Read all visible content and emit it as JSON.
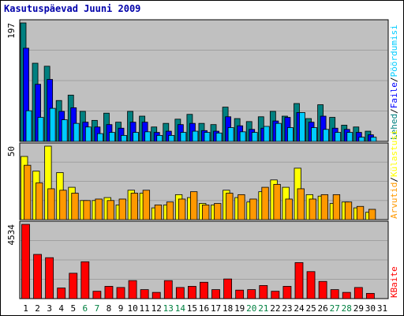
{
  "title": "Kasutuspäevad Juuni 2009",
  "colors": {
    "title": "#0000aa",
    "panel_bg": "#c0c0c0",
    "grid": "#a0a0a0",
    "weekday": "#000000",
    "weekend": "#008040",
    "hits": "#00ccff",
    "files": "#0000ff",
    "pages": "#008080",
    "visits": "#ffff00",
    "sites": "#ff9900",
    "kbytes": "#ff0000"
  },
  "chart_data": [
    {
      "type": "bar",
      "title": "",
      "ylabel": "197",
      "ylim": [
        0,
        197
      ],
      "x": [
        "1",
        "2",
        "3",
        "4",
        "5",
        "6",
        "7",
        "8",
        "9",
        "10",
        "11",
        "12",
        "13",
        "14",
        "15",
        "16",
        "17",
        "18",
        "19",
        "20",
        "21",
        "22",
        "23",
        "24",
        "25",
        "26",
        "27",
        "28",
        "29",
        "30",
        "31"
      ],
      "legend": [
        "Lehed",
        "/",
        "Faile",
        "/",
        "Pöördumisi"
      ],
      "series": [
        {
          "name": "Lehed",
          "color": "#008080",
          "values": [
            197,
            130,
            125,
            68,
            77,
            50,
            35,
            47,
            32,
            50,
            42,
            24,
            30,
            37,
            45,
            30,
            28,
            57,
            38,
            33,
            41,
            50,
            42,
            63,
            38,
            61,
            40,
            27,
            24,
            17,
            0
          ]
        },
        {
          "name": "Faile",
          "color": "#0000ff",
          "values": [
            155,
            95,
            103,
            50,
            56,
            32,
            24,
            28,
            22,
            32,
            32,
            15,
            17,
            28,
            30,
            18,
            17,
            41,
            26,
            20,
            22,
            34,
            40,
            48,
            32,
            42,
            22,
            20,
            15,
            11,
            0
          ]
        },
        {
          "name": "Pöördumisi",
          "color": "#00ccff",
          "values": [
            51,
            40,
            55,
            36,
            30,
            24,
            13,
            15,
            10,
            15,
            16,
            10,
            10,
            15,
            17,
            15,
            14,
            23,
            16,
            15,
            25,
            30,
            23,
            48,
            23,
            20,
            15,
            15,
            7,
            7,
            0
          ]
        }
      ]
    },
    {
      "type": "bar",
      "title": "",
      "ylabel": "50",
      "ylim": [
        0,
        50
      ],
      "x": [
        "1",
        "2",
        "3",
        "4",
        "5",
        "6",
        "7",
        "8",
        "9",
        "10",
        "11",
        "12",
        "13",
        "14",
        "15",
        "16",
        "17",
        "18",
        "19",
        "20",
        "21",
        "22",
        "23",
        "24",
        "25",
        "26",
        "27",
        "28",
        "29",
        "30",
        "31"
      ],
      "legend": [
        "Arvutid",
        "/",
        "Külastusi"
      ],
      "series": [
        {
          "name": "Külastusi",
          "color": "#ffff00",
          "values": [
            43,
            33,
            50,
            32,
            22,
            13,
            13,
            15,
            10,
            20,
            18,
            8,
            10,
            17,
            15,
            11,
            10,
            20,
            15,
            12,
            19,
            27,
            22,
            35,
            17,
            16,
            11,
            12,
            8,
            5,
            0
          ]
        },
        {
          "name": "Arvutid",
          "color": "#ff9900",
          "values": [
            37,
            25,
            21,
            20,
            18,
            13,
            14,
            13,
            14,
            18,
            20,
            10,
            12,
            14,
            19,
            10,
            11,
            18,
            17,
            14,
            22,
            24,
            14,
            21,
            14,
            17,
            17,
            12,
            9,
            7,
            0
          ]
        }
      ]
    },
    {
      "type": "bar",
      "title": "",
      "ylabel": "4534",
      "ylim": [
        0,
        4534
      ],
      "x": [
        "1",
        "2",
        "3",
        "4",
        "5",
        "6",
        "7",
        "8",
        "9",
        "10",
        "11",
        "12",
        "13",
        "14",
        "15",
        "16",
        "17",
        "18",
        "19",
        "20",
        "21",
        "22",
        "23",
        "24",
        "25",
        "26",
        "27",
        "28",
        "29",
        "30",
        "31"
      ],
      "legend": [
        "KBaite"
      ],
      "series": [
        {
          "name": "KBaite",
          "color": "#ff0000",
          "values": [
            4534,
            2700,
            2500,
            650,
            1550,
            2250,
            450,
            750,
            680,
            1100,
            550,
            380,
            1100,
            680,
            750,
            1000,
            550,
            1200,
            520,
            550,
            800,
            450,
            750,
            2200,
            1650,
            1050,
            550,
            380,
            680,
            320,
            0
          ]
        }
      ]
    }
  ],
  "x_axis": {
    "labels": [
      "1",
      "2",
      "3",
      "4",
      "5",
      "6",
      "7",
      "8",
      "9",
      "10",
      "11",
      "12",
      "13",
      "14",
      "15",
      "16",
      "17",
      "18",
      "19",
      "20",
      "21",
      "22",
      "23",
      "24",
      "25",
      "26",
      "27",
      "28",
      "29",
      "30",
      "31"
    ],
    "weekend": [
      false,
      false,
      false,
      false,
      false,
      true,
      true,
      false,
      false,
      false,
      false,
      false,
      true,
      true,
      false,
      false,
      false,
      false,
      false,
      true,
      true,
      false,
      false,
      false,
      false,
      false,
      true,
      true,
      false,
      false,
      false
    ]
  }
}
